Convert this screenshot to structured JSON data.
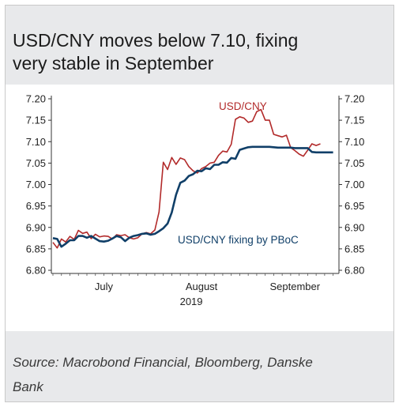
{
  "header": {
    "title_line1": "USD/CNY moves below 7.10, fixing",
    "title_line2": "very stable in September"
  },
  "footer": {
    "source_line1": "Source: Macrobond Financial, Bloomberg, Danske",
    "source_line2": "Bank"
  },
  "colors": {
    "usdcny": "#b22a2a",
    "fixing": "#103f68",
    "band": "#e8e9eb"
  },
  "chart_data": {
    "type": "line",
    "title": "USD/CNY moves below 7.10, fixing very stable in September",
    "ylim": [
      6.8,
      7.2
    ],
    "yticks": [
      "7.20",
      "7.15",
      "7.10",
      "7.05",
      "7.00",
      "6.95",
      "6.90",
      "6.85",
      "6.80"
    ],
    "ytick_values": [
      7.2,
      7.15,
      7.1,
      7.05,
      7.0,
      6.95,
      6.9,
      6.85,
      6.8
    ],
    "month_labels": [
      "July",
      "August",
      "September"
    ],
    "year_label": "2019",
    "month_label_index": [
      12,
      35,
      57
    ],
    "x_count": 68,
    "series": [
      {
        "name": "USD/CNY",
        "values": [
          6.865,
          6.852,
          6.873,
          6.866,
          6.879,
          6.872,
          6.893,
          6.886,
          6.889,
          6.874,
          6.884,
          6.878,
          6.88,
          6.879,
          6.873,
          6.883,
          6.881,
          6.883,
          6.876,
          6.873,
          6.876,
          6.885,
          6.888,
          6.885,
          6.894,
          6.936,
          7.052,
          7.035,
          7.063,
          7.047,
          7.062,
          7.058,
          7.042,
          7.032,
          7.027,
          7.037,
          7.042,
          7.05,
          7.052,
          7.068,
          7.078,
          7.076,
          7.094,
          7.152,
          7.158,
          7.155,
          7.145,
          7.148,
          7.17,
          7.175,
          7.15,
          7.15,
          7.117,
          7.114,
          7.111,
          7.115,
          7.086,
          7.079,
          7.071,
          7.066,
          7.08,
          7.095,
          7.091,
          7.095
        ]
      },
      {
        "name": "USD/CNY fixing by PBoC",
        "values": [
          6.875,
          6.873,
          6.855,
          6.862,
          6.87,
          6.87,
          6.88,
          6.88,
          6.876,
          6.88,
          6.874,
          6.868,
          6.867,
          6.869,
          6.874,
          6.88,
          6.877,
          6.868,
          6.876,
          6.88,
          6.882,
          6.885,
          6.886,
          6.883,
          6.885,
          6.891,
          6.898,
          6.909,
          6.935,
          6.976,
          7.004,
          7.009,
          7.02,
          7.024,
          7.032,
          7.031,
          7.038,
          7.036,
          7.046,
          7.046,
          7.052,
          7.051,
          7.062,
          7.06,
          7.081,
          7.084,
          7.087,
          7.088,
          7.088,
          7.088,
          7.088,
          7.088,
          7.087,
          7.086,
          7.086,
          7.086,
          7.086,
          7.085,
          7.085,
          7.085,
          7.085,
          7.076,
          7.075,
          7.075,
          7.075,
          7.075,
          7.075
        ]
      }
    ],
    "annotations": [
      {
        "text": "USD/CNY",
        "series": 0
      },
      {
        "text": "USD/CNY fixing by PBoC",
        "series": 1
      }
    ]
  }
}
